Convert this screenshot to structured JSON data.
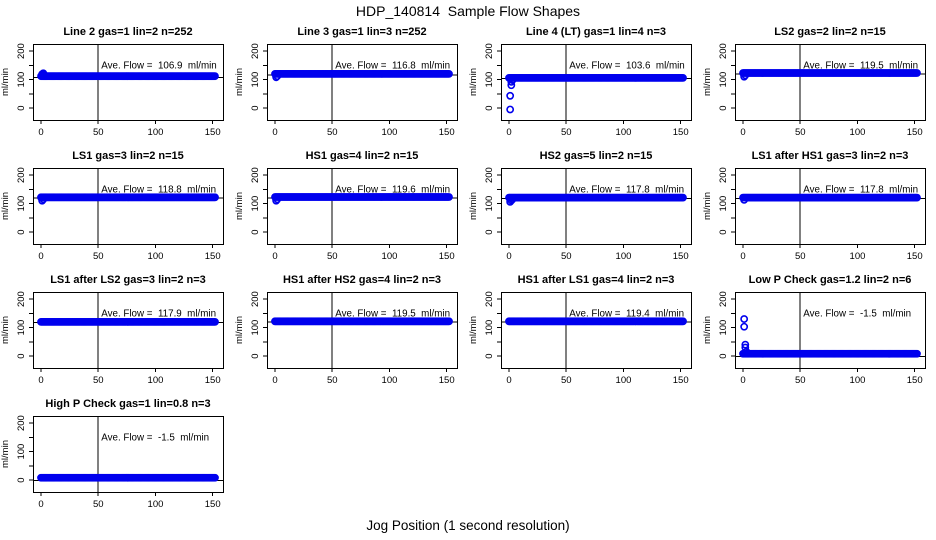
{
  "page": {
    "title": "HDP_140814  Sample Flow Shapes",
    "xlabel": "Jog Position (1 second resolution)"
  },
  "colors": {
    "points": "#0000EE",
    "axis": "#000000",
    "background": "#ffffff"
  },
  "chart_data": {
    "type": "scatter",
    "title": "HDP_140814  Sample Flow Shapes",
    "xlabel": "Jog Position (1 second resolution)",
    "ylabel": "ml/min",
    "grid": {
      "rows": 4,
      "cols": 4,
      "n_plots": 13
    },
    "xlim": [
      -7,
      159
    ],
    "ylim": [
      -42,
      225
    ],
    "xticks": [
      0,
      50,
      100,
      150
    ],
    "yticks": [
      0,
      50,
      100,
      150,
      200
    ],
    "ytick_labeled": [
      0,
      100,
      200
    ],
    "vline_x": 50,
    "point_color": "#0000EE",
    "band_x_range": [
      0,
      152
    ],
    "band_step": 1,
    "plots": [
      {
        "title": "Line 2 gas=1 lin=2 n=252",
        "gas": "1",
        "lin": "2",
        "n": 252,
        "ave_flow": 106.9,
        "annotation": "Ave. Flow =  106.9  ml/min",
        "band_y": 112,
        "lead_points": [
          [
            1,
            119
          ],
          [
            2,
            122
          ],
          [
            2,
            116
          ],
          [
            3,
            114
          ]
        ]
      },
      {
        "title": "Line 3 gas=1 lin=3 n=252",
        "gas": "1",
        "lin": "3",
        "n": 252,
        "ave_flow": 116.8,
        "annotation": "Ave. Flow =  116.8  ml/min",
        "band_y": 120,
        "lead_points": [
          [
            1,
            108
          ],
          [
            2,
            112
          ]
        ]
      },
      {
        "title": "Line 4 (LT) gas=1 lin=4 n=3",
        "gas": "1",
        "lin": "4",
        "n": 3,
        "ave_flow": 103.6,
        "annotation": "Ave. Flow =  103.6  ml/min",
        "band_y": 106,
        "lead_points": [
          [
            1,
            -5
          ],
          [
            1,
            43
          ],
          [
            2,
            80
          ],
          [
            2,
            92
          ],
          [
            3,
            98
          ]
        ]
      },
      {
        "title": "LS2 gas=2 lin=2 n=15",
        "gas": "2",
        "lin": "2",
        "n": 15,
        "ave_flow": 119.5,
        "annotation": "Ave. Flow =  119.5  ml/min",
        "band_y": 123,
        "lead_points": [
          [
            1,
            110
          ],
          [
            2,
            115
          ]
        ]
      },
      {
        "title": "LS1 gas=3 lin=2 n=15",
        "gas": "3",
        "lin": "2",
        "n": 15,
        "ave_flow": 118.8,
        "annotation": "Ave. Flow =  118.8  ml/min",
        "band_y": 122,
        "lead_points": [
          [
            1,
            110
          ],
          [
            2,
            115
          ]
        ]
      },
      {
        "title": "HS1 gas=4 lin=2 n=15",
        "gas": "4",
        "lin": "2",
        "n": 15,
        "ave_flow": 119.6,
        "annotation": "Ave. Flow =  119.6  ml/min",
        "band_y": 123,
        "lead_points": [
          [
            1,
            110
          ],
          [
            2,
            115
          ]
        ]
      },
      {
        "title": "HS2 gas=5 lin=2 n=15",
        "gas": "5",
        "lin": "2",
        "n": 15,
        "ave_flow": 117.8,
        "annotation": "Ave. Flow =  117.8  ml/min",
        "band_y": 121,
        "lead_points": [
          [
            1,
            106
          ],
          [
            2,
            111
          ],
          [
            3,
            115
          ]
        ]
      },
      {
        "title": "LS1 after HS1 gas=3 lin=2 n=3",
        "gas": "3",
        "lin": "2",
        "n": 3,
        "ave_flow": 117.8,
        "annotation": "Ave. Flow =  117.8  ml/min",
        "band_y": 121,
        "lead_points": [
          [
            1,
            113
          ]
        ]
      },
      {
        "title": "LS1 after LS2 gas=3 lin=2 n=3",
        "gas": "3",
        "lin": "2",
        "n": 3,
        "ave_flow": 117.9,
        "annotation": "Ave. Flow =  117.9  ml/min",
        "band_y": 120,
        "lead_points": []
      },
      {
        "title": "HS1 after HS2 gas=4 lin=2 n=3",
        "gas": "4",
        "lin": "2",
        "n": 3,
        "ave_flow": 119.5,
        "annotation": "Ave. Flow =  119.5  ml/min",
        "band_y": 122,
        "lead_points": []
      },
      {
        "title": "HS1 after LS1 gas=4 lin=2 n=3",
        "gas": "4",
        "lin": "2",
        "n": 3,
        "ave_flow": 119.4,
        "annotation": "Ave. Flow =  119.4  ml/min",
        "band_y": 122,
        "lead_points": []
      },
      {
        "title": "Low P Check gas=1.2 lin=2 n=6",
        "gas": "1.2",
        "lin": "2",
        "n": 6,
        "ave_flow": -1.5,
        "annotation": "Ave. Flow =  -1.5  ml/min",
        "band_y": 8,
        "lead_points": [
          [
            1,
            130
          ],
          [
            1,
            103
          ],
          [
            2,
            40
          ],
          [
            2,
            30
          ],
          [
            3,
            15
          ]
        ]
      },
      {
        "title": "High P Check gas=1 lin=0.8 n=3",
        "gas": "1",
        "lin": "0.8",
        "n": 3,
        "ave_flow": -1.5,
        "annotation": "Ave. Flow =  -1.5  ml/min",
        "band_y": 8,
        "lead_points": []
      }
    ]
  }
}
